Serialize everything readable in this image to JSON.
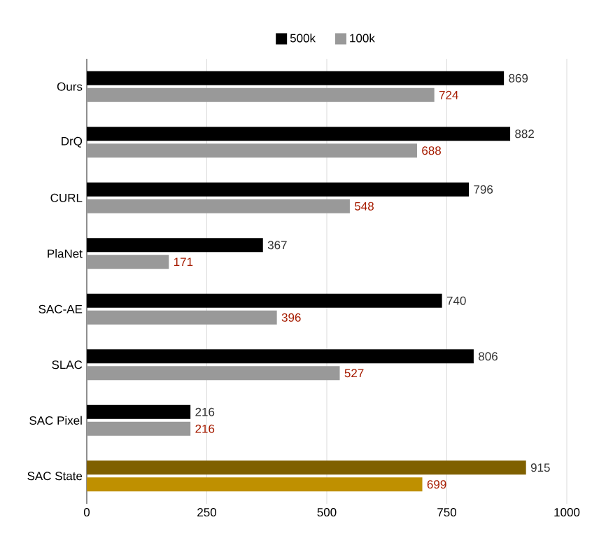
{
  "chart_data": {
    "type": "bar",
    "orientation": "horizontal",
    "categories": [
      "Ours",
      "DrQ",
      "CURL",
      "PlaNet",
      "SAC-AE",
      "SLAC",
      "SAC Pixel",
      "SAC State"
    ],
    "series": [
      {
        "name": "500k",
        "color": "#000000",
        "colors": [
          "#000000",
          "#000000",
          "#000000",
          "#000000",
          "#000000",
          "#000000",
          "#000000",
          "#7f6000"
        ],
        "values": [
          869,
          882,
          796,
          367,
          740,
          806,
          216,
          915
        ]
      },
      {
        "name": "100k",
        "color": "#999999",
        "colors": [
          "#999999",
          "#999999",
          "#999999",
          "#999999",
          "#999999",
          "#999999",
          "#999999",
          "#bf9000"
        ],
        "values": [
          724,
          688,
          548,
          171,
          396,
          527,
          216,
          699
        ]
      }
    ],
    "xlim": [
      0,
      1000
    ],
    "xticks": [
      0,
      250,
      500,
      750,
      1000
    ],
    "grid": "x",
    "legend": "top",
    "data_labels": true
  }
}
